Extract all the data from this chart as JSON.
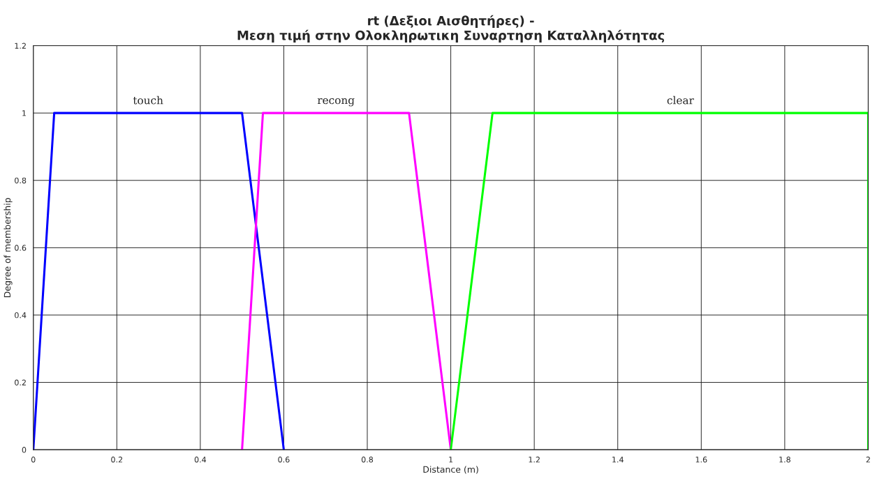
{
  "chart_data": {
    "type": "line",
    "title": "rt (Δεξιοι Αισθητήρες) -\nΜεση τιμή στην Ολοκληρωτικη Συναρτηση Καταλληλότητας",
    "xlabel": "Distance (m)",
    "ylabel": "Degree of membership",
    "series": [
      {
        "name": "touch",
        "color": "#0000ff",
        "x": [
          0,
          0.05,
          0.5,
          0.6
        ],
        "values": [
          0,
          1,
          1,
          0
        ]
      },
      {
        "name": "recong",
        "color": "#ff00ff",
        "x": [
          0.5,
          0.55,
          0.9,
          1
        ],
        "values": [
          0,
          1,
          1,
          0
        ]
      },
      {
        "name": "clear",
        "color": "#00ff00",
        "x": [
          1,
          1.1,
          2,
          2
        ],
        "values": [
          0,
          1,
          1,
          0
        ]
      }
    ],
    "xlim": [
      0,
      2
    ],
    "xticks": [
      0,
      0.2,
      0.4,
      0.6,
      0.8,
      1,
      1.2,
      1.4,
      1.6,
      1.8,
      2
    ],
    "ylim": [
      0,
      1.2
    ],
    "yticks": [
      0,
      0.2,
      0.4,
      0.6,
      0.8,
      1,
      1.2
    ],
    "grid": true,
    "legend": false,
    "marker": "none",
    "line_style": "solid"
  }
}
